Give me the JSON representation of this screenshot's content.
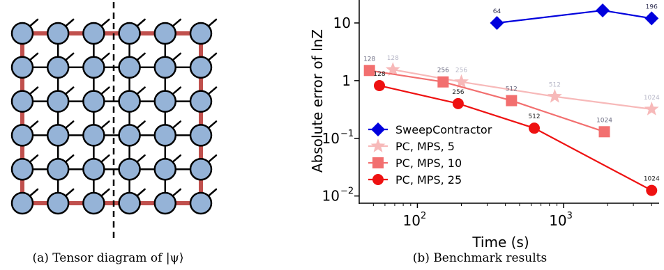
{
  "panel_a": {
    "caption": "(a) Tensor diagram of |ψ⟩",
    "grid": {
      "rows": 6,
      "cols": 6
    },
    "colors": {
      "node_fill": "#95b3d7",
      "node_stroke": "#000000",
      "bond_red": "#c0504d",
      "bond_black": "#000000"
    }
  },
  "panel_b": {
    "caption": "(b) Benchmark results"
  },
  "chart_data": {
    "type": "line",
    "xlabel": "Time (s)",
    "ylabel": "Absolute error of lnZ",
    "x_scale": "log",
    "y_scale": "log",
    "xlim": [
      40,
      4500
    ],
    "ylim": [
      0.0075,
      25
    ],
    "x_ticks": [
      {
        "value": 100,
        "base": "10",
        "exp": "2"
      },
      {
        "value": 1000,
        "base": "10",
        "exp": "3"
      }
    ],
    "y_ticks": [
      {
        "value": 10,
        "base": "10",
        "exp": ""
      },
      {
        "value": 1,
        "base": "1",
        "exp": ""
      },
      {
        "value": 0.1,
        "base": "10",
        "exp": "−1"
      },
      {
        "value": 0.01,
        "base": "10",
        "exp": "−2"
      }
    ],
    "legend_position": "bottom-left",
    "series": [
      {
        "name": "SweepContractor",
        "color": "#0000dd",
        "marker": "diamond",
        "points": [
          {
            "x": 350,
            "y": 10,
            "label": "64",
            "label_color": "#333355"
          },
          {
            "x": 1850,
            "y": 16.5,
            "label": "",
            "label_color": "#333355"
          },
          {
            "x": 4000,
            "y": 12,
            "label": "196",
            "label_color": "#333355"
          }
        ]
      },
      {
        "name": "PC, MPS, 5",
        "color": "#f7b9b9",
        "marker": "star",
        "points": [
          {
            "x": 68,
            "y": 1.55,
            "label": "128",
            "label_color": "#b8b8c8"
          },
          {
            "x": 200,
            "y": 0.95,
            "label": "256",
            "label_color": "#b8b8c8"
          },
          {
            "x": 870,
            "y": 0.53,
            "label": "512",
            "label_color": "#b8b8c8"
          },
          {
            "x": 4000,
            "y": 0.32,
            "label": "1024",
            "label_color": "#b8b8c8"
          }
        ]
      },
      {
        "name": "PC, MPS, 10",
        "color": "#f26f6f",
        "marker": "square",
        "points": [
          {
            "x": 47,
            "y": 1.5,
            "label": "128",
            "label_color": "#6a6a80"
          },
          {
            "x": 150,
            "y": 0.95,
            "label": "256",
            "label_color": "#6a6a80"
          },
          {
            "x": 440,
            "y": 0.45,
            "label": "512",
            "label_color": "#6a6a80"
          },
          {
            "x": 1900,
            "y": 0.13,
            "label": "1024",
            "label_color": "#6a6a80"
          }
        ]
      },
      {
        "name": "PC, MPS, 25",
        "color": "#ee1111",
        "marker": "circle",
        "points": [
          {
            "x": 55,
            "y": 0.82,
            "label": "128",
            "label_color": "#222222"
          },
          {
            "x": 190,
            "y": 0.4,
            "label": "256",
            "label_color": "#222222"
          },
          {
            "x": 630,
            "y": 0.15,
            "label": "512",
            "label_color": "#222222"
          },
          {
            "x": 4000,
            "y": 0.0125,
            "label": "1024",
            "label_color": "#222222"
          }
        ]
      }
    ]
  }
}
